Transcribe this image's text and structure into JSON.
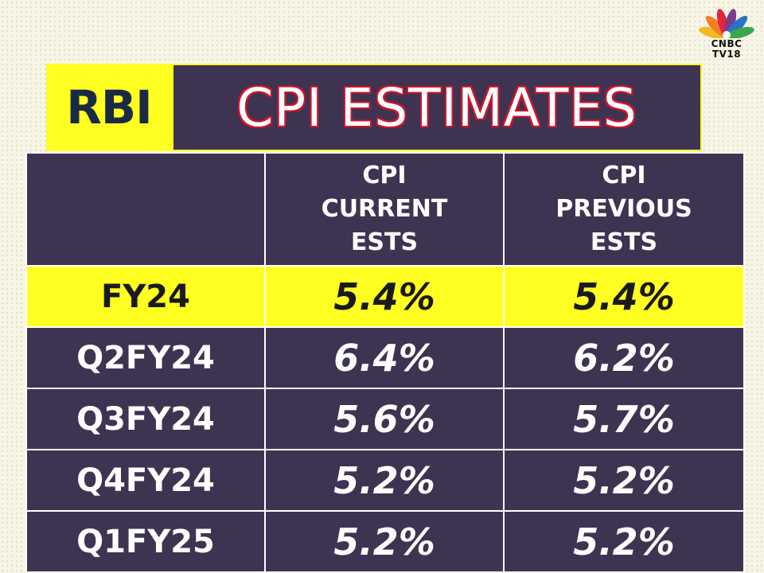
{
  "logo": {
    "line1": "CNBC",
    "line2": "TV18",
    "colors": [
      "#f5b921",
      "#f27f26",
      "#e3263c",
      "#7a3c8d",
      "#2a73c4",
      "#3aa84a"
    ]
  },
  "title": {
    "prefix": "RBI",
    "main": "CPI ESTIMATES"
  },
  "table": {
    "headers": [
      {
        "line1": "",
        "line2": ""
      },
      {
        "line1": "CPI",
        "line2": "CURRENT",
        "line3": "ESTS"
      },
      {
        "line1": "CPI",
        "line2": "PREVIOUS",
        "line3": "ESTS"
      }
    ],
    "rows": [
      {
        "period": "FY24",
        "current": "5.4%",
        "previous": "5.4%"
      },
      {
        "period": "Q2FY24",
        "current": "6.4%",
        "previous": "6.2%"
      },
      {
        "period": "Q3FY24",
        "current": "5.6%",
        "previous": "5.7%"
      },
      {
        "period": "Q4FY24",
        "current": "5.2%",
        "previous": "5.2%"
      },
      {
        "period": "Q1FY25",
        "current": "5.2%",
        "previous": "5.2%"
      }
    ]
  },
  "colors": {
    "panel": "#3f3352",
    "highlight": "#ffff22",
    "title_outline": "#d0142a",
    "rbi_text": "#1b2a44"
  }
}
